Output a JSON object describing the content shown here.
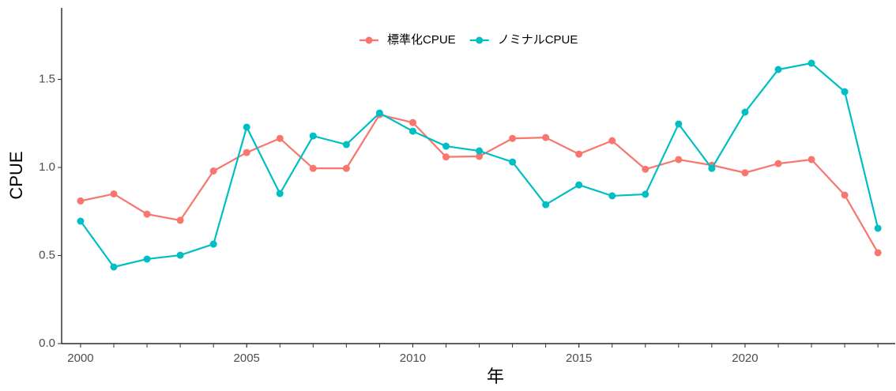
{
  "chart_data": {
    "type": "line",
    "x_label": "年",
    "y_label": "CPUE",
    "x": [
      2000,
      2001,
      2002,
      2003,
      2004,
      2005,
      2006,
      2007,
      2008,
      2009,
      2010,
      2011,
      2012,
      2013,
      2014,
      2015,
      2016,
      2017,
      2018,
      2019,
      2020,
      2021,
      2022,
      2023,
      2024
    ],
    "series": [
      {
        "name": "標準化CPUE",
        "color": "#F8766D",
        "values": [
          0.81,
          0.85,
          0.735,
          0.7,
          0.98,
          1.085,
          1.165,
          0.995,
          0.995,
          1.3,
          1.255,
          1.06,
          1.063,
          1.165,
          1.17,
          1.076,
          1.152,
          0.99,
          1.045,
          1.013,
          0.97,
          1.022,
          1.045,
          0.843,
          0.516
        ]
      },
      {
        "name": "ノミナルCPUE",
        "color": "#00BFC4",
        "values": [
          0.695,
          0.435,
          0.48,
          0.502,
          0.565,
          1.229,
          0.852,
          1.179,
          1.13,
          1.309,
          1.206,
          1.121,
          1.094,
          1.031,
          0.789,
          0.901,
          0.839,
          0.848,
          1.247,
          0.995,
          1.314,
          1.556,
          1.592,
          1.43,
          0.655
        ]
      }
    ],
    "xlim": [
      1999.43,
      2024.52
    ],
    "ylim": [
      0,
      1.906
    ],
    "xticks": [
      2000,
      2005,
      2010,
      2015,
      2020
    ],
    "yticks": [
      {
        "value": 0,
        "label": "0.0"
      },
      {
        "value": 0.5,
        "label": "0.5"
      },
      {
        "value": 1,
        "label": "1.0"
      },
      {
        "value": 1.5,
        "label": "1.5"
      }
    ],
    "legend": "top",
    "grid": false
  }
}
